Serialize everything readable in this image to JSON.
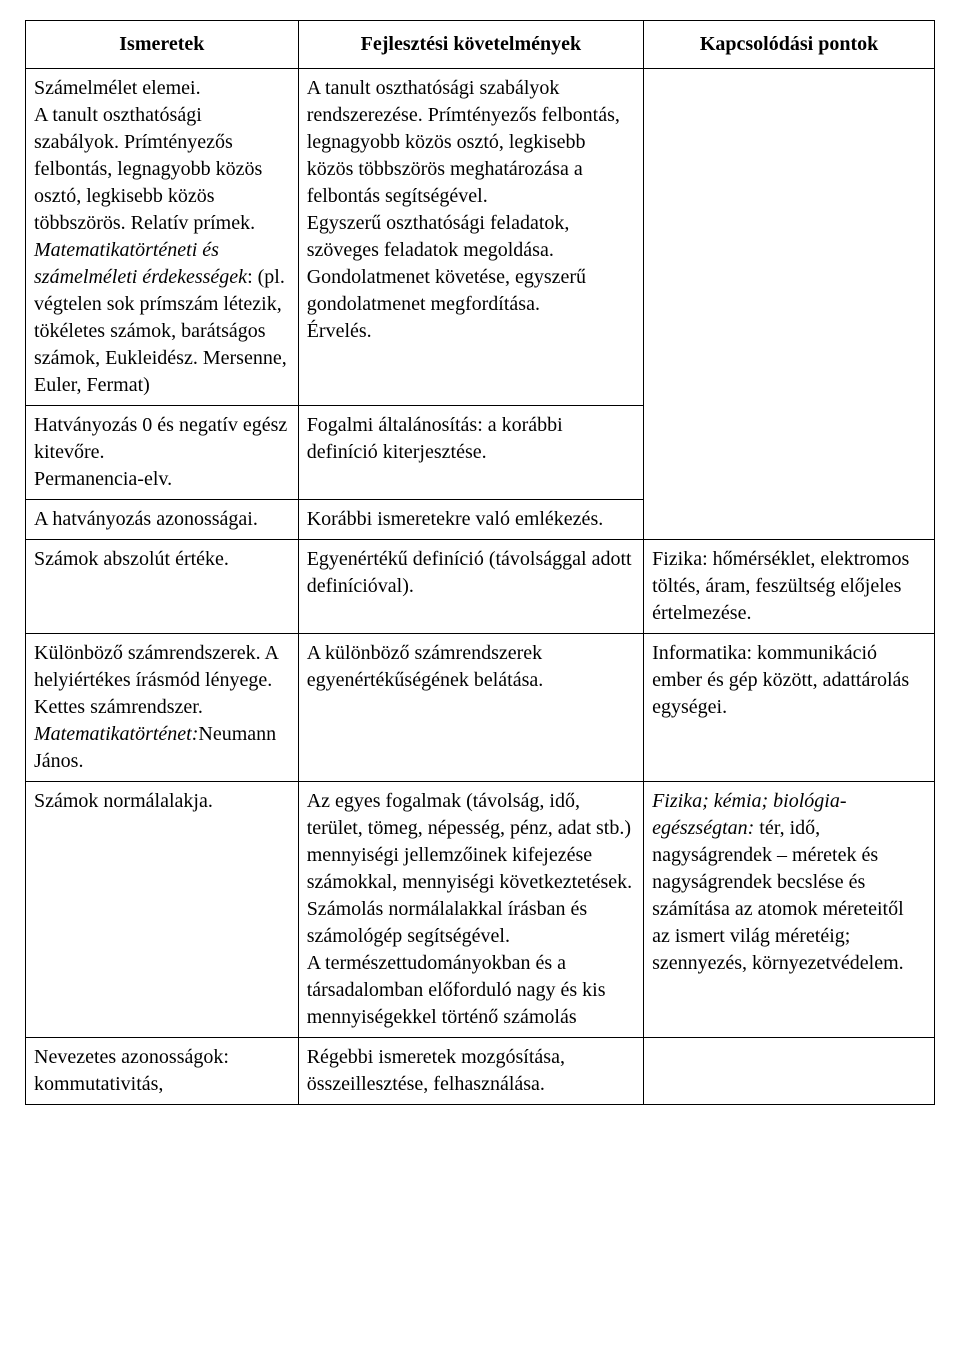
{
  "headers": {
    "col1": "Ismeretek",
    "col2": "Fejlesztési követelmények",
    "col3": "Kapcsolódási pontok"
  },
  "rows": [
    {
      "c1_a": "Számelmélet elemei.\nA tanult oszthatósági szabályok. Prímtényezős felbontás, legnagyobb közös osztó, legkisebb közös többszörös. Relatív prímek.",
      "c1_i1": "Matematikatörténeti és számelméleti érdekességek",
      "c1_b": ": (pl. végtelen sok prímszám létezik, tökéletes számok, barátságos számok, Eukleidész. Mersenne, Euler, Fermat)",
      "c2": "A tanult oszthatósági szabályok rendszerezése. Prímtényezős felbontás, legnagyobb közös osztó, legkisebb közös többszörös meghatározása a felbontás segítségével.\nEgyszerű oszthatósági feladatok, szöveges feladatok megoldása.\nGondolatmenet követése, egyszerű gondolatmenet megfordítása.\nÉrvelés.",
      "c3": ""
    },
    {
      "c1": "Hatványozás 0 és negatív egész kitevőre.\nPermanencia-elv.",
      "c2": "Fogalmi általánosítás: a korábbi definíció kiterjesztése.",
      "c3": ""
    },
    {
      "c1": "A hatványozás azonosságai.",
      "c2": "Korábbi ismeretekre való emlékezés.",
      "c3": ""
    },
    {
      "c1": "Számok abszolút értéke.",
      "c2": "Egyenértékű definíció (távolsággal adott definícióval).",
      "c3": "Fizika: hőmérséklet, elektromos töltés, áram, feszültség előjeles értelmezése."
    },
    {
      "c1_a": "Különböző számrendszerek. A helyiértékes írásmód lényege. Kettes számrendszer.",
      "c1_i1": "Matematikatörténet:",
      "c1_b": "Neumann János.",
      "c2": "A különböző számrendszerek egyenértékűségének belátása.",
      "c3": "Informatika: kommunikáció ember és gép között, adattárolás egységei."
    },
    {
      "c1": "Számok normálalakja.",
      "c2": "Az egyes fogalmak (távolság, idő, terület, tömeg, népesség, pénz, adat stb.) mennyiségi jellemzőinek kifejezése számokkal, mennyiségi következtetések. Számolás normálalakkal írásban és számológép segítségével.\nA természettudományokban és a társadalomban előforduló nagy és kis mennyiségekkel történő számolás",
      "c3_i": "Fizika; kémia; biológia-egészségtan:",
      "c3_b": " tér, idő, nagyságrendek – méretek és nagyságrendek becslése és számítása az atomok méreteitől az ismert világ méretéig; szennyezés, környezetvédelem."
    },
    {
      "c1": "Nevezetes azonosságok: kommutativitás,",
      "c2": "Régebbi ismeretek mozgósítása, összeillesztése, felhasználása.",
      "c3": ""
    }
  ]
}
